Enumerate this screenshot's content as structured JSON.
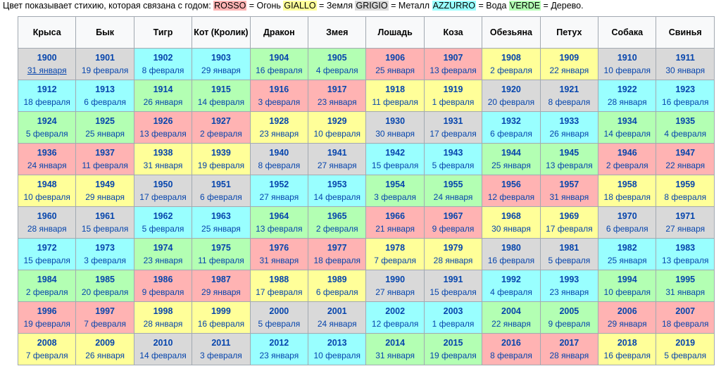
{
  "legend": {
    "intro": "Цвет показывает стихию, которая связана с годом: ",
    "items": [
      {
        "key": "ROSSO",
        "text": " = Огонь",
        "color": "#ffb3b3"
      },
      {
        "key": "GIALLO",
        "text": " = Земля",
        "color": "#ffff99"
      },
      {
        "key": "GRIGIO",
        "text": " = Металл",
        "color": "#d9d9d9"
      },
      {
        "key": "AZZURRO",
        "text": " = Вода",
        "color": "#99ffff"
      },
      {
        "key": "VERDE",
        "text": " = Дерево.",
        "color": "#b3ffb3"
      }
    ]
  },
  "colors": {
    "fire": "#ffb3b3",
    "earth": "#ffff99",
    "metal": "#d9d9d9",
    "water": "#99ffff",
    "wood": "#b3ffb3"
  },
  "headers": [
    "Крыса",
    "Бык",
    "Тигр",
    "Кот (Кролик)",
    "Дракон",
    "Змея",
    "Лошадь",
    "Коза",
    "Обезьяна",
    "Петух",
    "Собака",
    "Свинья"
  ],
  "rows": [
    [
      {
        "year": "1900",
        "date": "31 января",
        "el": "metal",
        "u": true
      },
      {
        "year": "1901",
        "date": "19 февраля",
        "el": "metal"
      },
      {
        "year": "1902",
        "date": "8 февраля",
        "el": "water"
      },
      {
        "year": "1903",
        "date": "29 января",
        "el": "water"
      },
      {
        "year": "1904",
        "date": "16 февраля",
        "el": "wood"
      },
      {
        "year": "1905",
        "date": "4 февраля",
        "el": "wood"
      },
      {
        "year": "1906",
        "date": "25 января",
        "el": "fire"
      },
      {
        "year": "1907",
        "date": "13 февраля",
        "el": "fire"
      },
      {
        "year": "1908",
        "date": "2 февраля",
        "el": "earth"
      },
      {
        "year": "1909",
        "date": "22 января",
        "el": "earth"
      },
      {
        "year": "1910",
        "date": "10 февраля",
        "el": "metal"
      },
      {
        "year": "1911",
        "date": "30 января",
        "el": "metal"
      }
    ],
    [
      {
        "year": "1912",
        "date": "18 февраля",
        "el": "water"
      },
      {
        "year": "1913",
        "date": "6 февраля",
        "el": "water"
      },
      {
        "year": "1914",
        "date": "26 января",
        "el": "wood"
      },
      {
        "year": "1915",
        "date": "14 февраля",
        "el": "wood"
      },
      {
        "year": "1916",
        "date": "3 февраля",
        "el": "fire"
      },
      {
        "year": "1917",
        "date": "23 января",
        "el": "fire"
      },
      {
        "year": "1918",
        "date": "11 февраля",
        "el": "earth"
      },
      {
        "year": "1919",
        "date": "1 февраля",
        "el": "earth"
      },
      {
        "year": "1920",
        "date": "20 февраля",
        "el": "metal"
      },
      {
        "year": "1921",
        "date": "8 февраля",
        "el": "metal"
      },
      {
        "year": "1922",
        "date": "28 января",
        "el": "water"
      },
      {
        "year": "1923",
        "date": "16 февраля",
        "el": "water"
      }
    ],
    [
      {
        "year": "1924",
        "date": "5 февраля",
        "el": "wood"
      },
      {
        "year": "1925",
        "date": "25 января",
        "el": "wood"
      },
      {
        "year": "1926",
        "date": "13 февраля",
        "el": "fire"
      },
      {
        "year": "1927",
        "date": "2 февраля",
        "el": "fire"
      },
      {
        "year": "1928",
        "date": "23 января",
        "el": "earth"
      },
      {
        "year": "1929",
        "date": "10 февраля",
        "el": "earth"
      },
      {
        "year": "1930",
        "date": "30 января",
        "el": "metal"
      },
      {
        "year": "1931",
        "date": "17 февраля",
        "el": "metal"
      },
      {
        "year": "1932",
        "date": "6 февраля",
        "el": "water"
      },
      {
        "year": "1933",
        "date": "26 января",
        "el": "water"
      },
      {
        "year": "1934",
        "date": "14 февраля",
        "el": "wood"
      },
      {
        "year": "1935",
        "date": "4 февраля",
        "el": "wood"
      }
    ],
    [
      {
        "year": "1936",
        "date": "24 января",
        "el": "fire"
      },
      {
        "year": "1937",
        "date": "11 февраля",
        "el": "fire"
      },
      {
        "year": "1938",
        "date": "31 января",
        "el": "earth"
      },
      {
        "year": "1939",
        "date": "19 февраля",
        "el": "earth"
      },
      {
        "year": "1940",
        "date": "8 февраля",
        "el": "metal"
      },
      {
        "year": "1941",
        "date": "27 января",
        "el": "metal"
      },
      {
        "year": "1942",
        "date": "15 февраля",
        "el": "water"
      },
      {
        "year": "1943",
        "date": "5 февраля",
        "el": "water"
      },
      {
        "year": "1944",
        "date": "25 января",
        "el": "wood"
      },
      {
        "year": "1945",
        "date": "13 февраля",
        "el": "wood"
      },
      {
        "year": "1946",
        "date": "2 февраля",
        "el": "fire"
      },
      {
        "year": "1947",
        "date": "22 января",
        "el": "fire"
      }
    ],
    [
      {
        "year": "1948",
        "date": "10 февраля",
        "el": "earth"
      },
      {
        "year": "1949",
        "date": "29 января",
        "el": "earth"
      },
      {
        "year": "1950",
        "date": "17 февраля",
        "el": "metal"
      },
      {
        "year": "1951",
        "date": "6 февраля",
        "el": "metal"
      },
      {
        "year": "1952",
        "date": "27 января",
        "el": "water"
      },
      {
        "year": "1953",
        "date": "14 февраля",
        "el": "water"
      },
      {
        "year": "1954",
        "date": "3 февраля",
        "el": "wood"
      },
      {
        "year": "1955",
        "date": "24 января",
        "el": "wood"
      },
      {
        "year": "1956",
        "date": "12 февраля",
        "el": "fire"
      },
      {
        "year": "1957",
        "date": "31 января",
        "el": "fire"
      },
      {
        "year": "1958",
        "date": "18 февраля",
        "el": "earth"
      },
      {
        "year": "1959",
        "date": "8 февраля",
        "el": "earth"
      }
    ],
    [
      {
        "year": "1960",
        "date": "28 января",
        "el": "metal"
      },
      {
        "year": "1961",
        "date": "15 февраля",
        "el": "metal"
      },
      {
        "year": "1962",
        "date": "5 февраля",
        "el": "water"
      },
      {
        "year": "1963",
        "date": "25 января",
        "el": "water"
      },
      {
        "year": "1964",
        "date": "13 февраля",
        "el": "wood"
      },
      {
        "year": "1965",
        "date": "2 февраля",
        "el": "wood"
      },
      {
        "year": "1966",
        "date": "21 января",
        "el": "fire"
      },
      {
        "year": "1967",
        "date": "9 февраля",
        "el": "fire"
      },
      {
        "year": "1968",
        "date": "30 января",
        "el": "earth"
      },
      {
        "year": "1969",
        "date": "17 февраля",
        "el": "earth"
      },
      {
        "year": "1970",
        "date": "6 февраля",
        "el": "metal"
      },
      {
        "year": "1971",
        "date": "27 января",
        "el": "metal"
      }
    ],
    [
      {
        "year": "1972",
        "date": "15 февраля",
        "el": "water"
      },
      {
        "year": "1973",
        "date": "3 февраля",
        "el": "water"
      },
      {
        "year": "1974",
        "date": "23 января",
        "el": "wood"
      },
      {
        "year": "1975",
        "date": "11 февраля",
        "el": "wood"
      },
      {
        "year": "1976",
        "date": "31 января",
        "el": "fire"
      },
      {
        "year": "1977",
        "date": "18 февраля",
        "el": "fire"
      },
      {
        "year": "1978",
        "date": "7 февраля",
        "el": "earth"
      },
      {
        "year": "1979",
        "date": "28 января",
        "el": "earth"
      },
      {
        "year": "1980",
        "date": "16 февраля",
        "el": "metal"
      },
      {
        "year": "1981",
        "date": "5 февраля",
        "el": "metal"
      },
      {
        "year": "1982",
        "date": "25 января",
        "el": "water"
      },
      {
        "year": "1983",
        "date": "13 февраля",
        "el": "water"
      }
    ],
    [
      {
        "year": "1984",
        "date": "2 февраля",
        "el": "wood"
      },
      {
        "year": "1985",
        "date": "20 февраля",
        "el": "wood"
      },
      {
        "year": "1986",
        "date": "9 февраля",
        "el": "fire"
      },
      {
        "year": "1987",
        "date": "29 января",
        "el": "fire"
      },
      {
        "year": "1988",
        "date": "17 февраля",
        "el": "earth"
      },
      {
        "year": "1989",
        "date": "6 февраля",
        "el": "earth"
      },
      {
        "year": "1990",
        "date": "27 января",
        "el": "metal"
      },
      {
        "year": "1991",
        "date": "15 февраля",
        "el": "metal"
      },
      {
        "year": "1992",
        "date": "4 февраля",
        "el": "water"
      },
      {
        "year": "1993",
        "date": "23 января",
        "el": "water"
      },
      {
        "year": "1994",
        "date": "10 февраля",
        "el": "wood"
      },
      {
        "year": "1995",
        "date": "31 января",
        "el": "wood"
      }
    ],
    [
      {
        "year": "1996",
        "date": "19 февраля",
        "el": "fire"
      },
      {
        "year": "1997",
        "date": "7 февраля",
        "el": "fire"
      },
      {
        "year": "1998",
        "date": "28 января",
        "el": "earth"
      },
      {
        "year": "1999",
        "date": "16 февраля",
        "el": "earth"
      },
      {
        "year": "2000",
        "date": "5 февраля",
        "el": "metal"
      },
      {
        "year": "2001",
        "date": "24 января",
        "el": "metal"
      },
      {
        "year": "2002",
        "date": "12 февраля",
        "el": "water"
      },
      {
        "year": "2003",
        "date": "1 февраля",
        "el": "water"
      },
      {
        "year": "2004",
        "date": "22 января",
        "el": "wood"
      },
      {
        "year": "2005",
        "date": "9 февраля",
        "el": "wood"
      },
      {
        "year": "2006",
        "date": "29 января",
        "el": "fire"
      },
      {
        "year": "2007",
        "date": "18 февраля",
        "el": "fire"
      }
    ],
    [
      {
        "year": "2008",
        "date": "7 февраля",
        "el": "earth"
      },
      {
        "year": "2009",
        "date": "26 января",
        "el": "earth"
      },
      {
        "year": "2010",
        "date": "14 февраля",
        "el": "metal"
      },
      {
        "year": "2011",
        "date": "3 февраля",
        "el": "metal"
      },
      {
        "year": "2012",
        "date": "23 января",
        "el": "water"
      },
      {
        "year": "2013",
        "date": "10 февраля",
        "el": "water"
      },
      {
        "year": "2014",
        "date": "31 января",
        "el": "wood"
      },
      {
        "year": "2015",
        "date": "19 февраля",
        "el": "wood"
      },
      {
        "year": "2016",
        "date": "8 февраля",
        "el": "fire"
      },
      {
        "year": "2017",
        "date": "28 января",
        "el": "fire"
      },
      {
        "year": "2018",
        "date": "16 февраля",
        "el": "earth"
      },
      {
        "year": "2019",
        "date": "5 февраля",
        "el": "earth"
      }
    ]
  ]
}
